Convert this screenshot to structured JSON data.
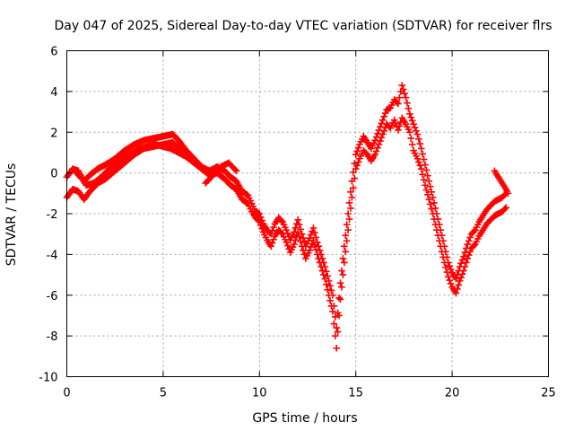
{
  "chart_data": {
    "type": "scatter",
    "title": "Day 047 of 2025, Sidereal Day-to-day VTEC variation (SDTVAR) for receiver flrs",
    "xlabel": "GPS time / hours",
    "ylabel": "SDTVAR / TECUs",
    "xlim": [
      0,
      25
    ],
    "ylim": [
      -10,
      6
    ],
    "xticks": [
      "0",
      "5",
      "10",
      "15",
      "20",
      "25"
    ],
    "yticks": [
      "-10",
      "-8",
      "-6",
      "-4",
      "-2",
      "0",
      "2",
      "4",
      "6"
    ],
    "grid": true,
    "marker": "plus",
    "color": "#ff0000",
    "series": [
      {
        "x": [
          0.0,
          0.3,
          0.6,
          0.9,
          1.2,
          1.6,
          2.0,
          2.5,
          3.0,
          3.5,
          4.0,
          4.5,
          5.0,
          5.5,
          5.8,
          6.2,
          6.6,
          7.0,
          7.4,
          7.8,
          8.2,
          8.5,
          8.8,
          9.1,
          9.4,
          9.6,
          9.8,
          10.0,
          10.2,
          10.4,
          10.6,
          10.8,
          11.0,
          11.2,
          11.4,
          11.6,
          11.8,
          12.0,
          12.2,
          12.4,
          12.6,
          12.8,
          13.0,
          13.2,
          13.4,
          13.6,
          13.8,
          14.0,
          14.2,
          14.4,
          14.6,
          14.8,
          15.0,
          15.2,
          15.4,
          15.6,
          15.8,
          16.0,
          16.2,
          16.4,
          16.6,
          16.8,
          17.0,
          17.2,
          17.4,
          17.6,
          17.8,
          18.0,
          18.2,
          18.4,
          18.6,
          18.8,
          19.0,
          19.2,
          19.4,
          19.6,
          19.8,
          20.0,
          20.2,
          20.4,
          20.6,
          20.8,
          21.0,
          21.2,
          21.4,
          21.6,
          21.8,
          22.0,
          22.2,
          22.4,
          22.6,
          22.8
        ],
        "y": [
          -1.2,
          -0.8,
          -0.9,
          -1.3,
          -0.9,
          -0.5,
          -0.3,
          0.1,
          0.5,
          0.9,
          1.2,
          1.3,
          1.4,
          1.5,
          1.2,
          0.8,
          0.5,
          0.2,
          -0.1,
          0.0,
          -0.3,
          -0.6,
          -0.8,
          -1.3,
          -1.5,
          -1.9,
          -2.2,
          -2.4,
          -2.9,
          -3.3,
          -3.6,
          -3.1,
          -2.8,
          -3.0,
          -3.4,
          -3.9,
          -3.5,
          -2.9,
          -3.6,
          -4.2,
          -3.8,
          -3.3,
          -4.0,
          -4.6,
          -5.2,
          -6.0,
          -6.8,
          -8.6,
          -6.2,
          -4.4,
          -2.8,
          -1.2,
          0.2,
          0.7,
          1.1,
          0.9,
          0.6,
          0.9,
          1.4,
          1.9,
          2.4,
          2.2,
          2.6,
          2.1,
          2.7,
          2.4,
          2.0,
          1.1,
          0.7,
          0.2,
          -0.6,
          -1.3,
          -2.0,
          -2.8,
          -3.6,
          -4.4,
          -5.1,
          -5.6,
          -5.9,
          -5.3,
          -4.8,
          -4.2,
          -3.7,
          -3.5,
          -3.1,
          -2.8,
          -2.5,
          -2.3,
          -2.1,
          -2.0,
          -1.9,
          -1.7
        ]
      },
      {
        "x": [
          0.0,
          0.3,
          0.6,
          0.9,
          1.2,
          1.6,
          2.0,
          2.5,
          3.0,
          3.5,
          4.0,
          4.5,
          5.0,
          5.5,
          5.8,
          6.2,
          6.6,
          7.0,
          7.4,
          7.8,
          8.2,
          8.5,
          8.8,
          9.1,
          9.4,
          9.6,
          9.8,
          10.0,
          10.2,
          10.4,
          10.6,
          10.8,
          11.0,
          11.2,
          11.4,
          11.6,
          11.8,
          12.0,
          12.2,
          12.4,
          12.6,
          12.8,
          13.0,
          13.2,
          13.4,
          13.6,
          13.8,
          14.0,
          14.2,
          14.4,
          14.6,
          14.8,
          15.0,
          15.2,
          15.4,
          15.6,
          15.8,
          16.0,
          16.2,
          16.4,
          16.6,
          16.8,
          17.0,
          17.2,
          17.4,
          17.6,
          17.8,
          18.0,
          18.2,
          18.4,
          18.6,
          18.8,
          19.0,
          19.2,
          19.4,
          19.6,
          19.8,
          20.0,
          20.2,
          20.4,
          20.6,
          20.8,
          21.0,
          21.2,
          21.4,
          21.6,
          21.8,
          22.0,
          22.2,
          22.4,
          22.6,
          22.8
        ],
        "y": [
          -0.2,
          0.2,
          0.1,
          -0.4,
          -0.1,
          0.2,
          0.4,
          0.7,
          1.1,
          1.4,
          1.6,
          1.7,
          1.8,
          1.9,
          1.6,
          1.1,
          0.7,
          0.3,
          0.1,
          0.3,
          0.1,
          -0.2,
          -0.4,
          -0.9,
          -1.1,
          -1.5,
          -1.9,
          -2.0,
          -2.5,
          -2.8,
          -3.0,
          -2.5,
          -2.2,
          -2.4,
          -2.8,
          -3.3,
          -2.9,
          -2.3,
          -3.0,
          -3.6,
          -3.2,
          -2.7,
          -3.4,
          -4.0,
          -4.6,
          -5.3,
          -6.0,
          -7.6,
          -5.4,
          -3.6,
          -2.0,
          -0.4,
          0.9,
          1.4,
          1.8,
          1.5,
          1.2,
          1.6,
          2.1,
          2.6,
          3.1,
          3.2,
          3.6,
          3.4,
          4.3,
          3.7,
          2.9,
          2.4,
          1.9,
          1.2,
          0.4,
          -0.4,
          -1.2,
          -2.0,
          -2.8,
          -3.6,
          -4.4,
          -4.9,
          -5.2,
          -4.6,
          -4.1,
          -3.5,
          -3.0,
          -2.8,
          -2.4,
          -2.1,
          -1.8,
          -1.6,
          -1.4,
          -1.3,
          -1.2,
          -1.0
        ]
      },
      {
        "x": [
          0.5,
          0.8,
          1.0,
          1.4,
          1.8,
          2.2,
          2.6,
          3.0,
          3.4,
          3.8,
          4.2,
          4.6,
          5.0,
          5.4,
          5.8,
          6.2,
          6.6
        ],
        "y": [
          0.0,
          -0.3,
          -0.6,
          -0.5,
          -0.2,
          0.2,
          0.5,
          0.8,
          1.0,
          1.2,
          1.3,
          1.4,
          1.3,
          1.2,
          1.0,
          0.8,
          0.6
        ]
      },
      {
        "x": [
          7.2,
          7.4,
          7.6,
          7.8,
          8.0,
          8.2,
          8.4,
          8.6,
          8.8
        ],
        "y": [
          -0.5,
          -0.3,
          -0.1,
          0.1,
          0.3,
          0.4,
          0.5,
          0.3,
          0.1
        ]
      },
      {
        "x": [
          22.2,
          22.4,
          22.6,
          22.8,
          22.9
        ],
        "y": [
          0.1,
          -0.2,
          -0.5,
          -0.8,
          -1.0
        ]
      }
    ]
  }
}
